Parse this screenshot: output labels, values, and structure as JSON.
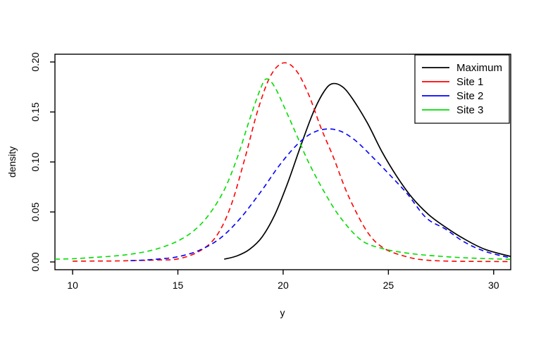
{
  "chart_data": {
    "type": "line",
    "title": "",
    "xlabel": "y",
    "ylabel": "density",
    "xlim": [
      9.16,
      30.81
    ],
    "ylim": [
      -0.00775,
      0.20775
    ],
    "grid": false,
    "x_ticks": {
      "values": [
        10,
        15,
        20,
        25,
        30
      ],
      "labels": [
        "10",
        "15",
        "20",
        "25",
        "30"
      ]
    },
    "y_ticks": {
      "values": [
        0.0,
        0.05,
        0.1,
        0.15,
        0.2
      ],
      "labels": [
        "0.00",
        "0.05",
        "0.10",
        "0.15",
        "0.20"
      ]
    },
    "legend": {
      "position": "topright",
      "labels": [
        "Maximum",
        "Site 1",
        "Site 2",
        "Site 3"
      ]
    },
    "series": [
      {
        "name": "Maximum",
        "color": "#000000",
        "style": "solid",
        "points": [
          [
            17.2,
            0.0028
          ],
          [
            17.8,
            0.006
          ],
          [
            18.4,
            0.0125
          ],
          [
            19.0,
            0.025
          ],
          [
            19.6,
            0.047
          ],
          [
            20.2,
            0.078
          ],
          [
            20.8,
            0.114
          ],
          [
            21.4,
            0.148
          ],
          [
            21.9,
            0.169
          ],
          [
            22.3,
            0.178
          ],
          [
            22.8,
            0.1755
          ],
          [
            23.3,
            0.163
          ],
          [
            24.0,
            0.139
          ],
          [
            24.7,
            0.11
          ],
          [
            25.4,
            0.0855
          ],
          [
            26.1,
            0.065
          ],
          [
            26.9,
            0.0475
          ],
          [
            27.7,
            0.035
          ],
          [
            28.6,
            0.023
          ],
          [
            29.6,
            0.0125
          ],
          [
            30.81,
            0.0055
          ]
        ]
      },
      {
        "name": "Site 1",
        "color": "#ff0000",
        "style": "dashed",
        "points": [
          [
            10.0,
            0.0008
          ],
          [
            11.0,
            0.0009
          ],
          [
            12.0,
            0.001
          ],
          [
            13.0,
            0.0014
          ],
          [
            14.0,
            0.002
          ],
          [
            15.0,
            0.003
          ],
          [
            16.0,
            0.0105
          ],
          [
            16.8,
            0.025
          ],
          [
            17.5,
            0.055
          ],
          [
            18.2,
            0.105
          ],
          [
            18.8,
            0.152
          ],
          [
            19.4,
            0.186
          ],
          [
            20.0,
            0.199
          ],
          [
            20.6,
            0.192
          ],
          [
            21.2,
            0.168
          ],
          [
            21.8,
            0.134
          ],
          [
            22.4,
            0.104
          ],
          [
            23.1,
            0.066
          ],
          [
            24.0,
            0.03
          ],
          [
            24.8,
            0.0135
          ],
          [
            25.9,
            0.005
          ],
          [
            26.8,
            0.0018
          ],
          [
            28.0,
            0.0008
          ],
          [
            29.5,
            0.0005
          ],
          [
            30.81,
            0.0004
          ]
        ]
      },
      {
        "name": "Site 2",
        "color": "#0000ff",
        "style": "dashed",
        "points": [
          [
            12.75,
            0.0013
          ],
          [
            13.5,
            0.002
          ],
          [
            14.2,
            0.0032
          ],
          [
            15.0,
            0.0052
          ],
          [
            16.0,
            0.0115
          ],
          [
            17.0,
            0.0235
          ],
          [
            18.0,
            0.0445
          ],
          [
            19.0,
            0.072
          ],
          [
            19.8,
            0.096
          ],
          [
            20.6,
            0.116
          ],
          [
            21.3,
            0.128
          ],
          [
            22.0,
            0.1328
          ],
          [
            22.7,
            0.131
          ],
          [
            23.4,
            0.122
          ],
          [
            24.1,
            0.108
          ],
          [
            25.0,
            0.0885
          ],
          [
            25.9,
            0.068
          ],
          [
            26.8,
            0.044
          ],
          [
            27.7,
            0.033
          ],
          [
            28.6,
            0.02
          ],
          [
            29.6,
            0.0105
          ],
          [
            30.81,
            0.004
          ]
        ]
      },
      {
        "name": "Site 3",
        "color": "#00dd00",
        "style": "dashed",
        "points": [
          [
            9.16,
            0.0028
          ],
          [
            10.0,
            0.0032
          ],
          [
            11.0,
            0.0045
          ],
          [
            12.0,
            0.006
          ],
          [
            13.0,
            0.0085
          ],
          [
            14.0,
            0.013
          ],
          [
            15.0,
            0.021
          ],
          [
            15.8,
            0.032
          ],
          [
            16.5,
            0.048
          ],
          [
            17.2,
            0.072
          ],
          [
            17.8,
            0.103
          ],
          [
            18.4,
            0.142
          ],
          [
            18.9,
            0.172
          ],
          [
            19.2,
            0.183
          ],
          [
            19.6,
            0.175
          ],
          [
            20.2,
            0.148
          ],
          [
            20.7,
            0.124
          ],
          [
            21.2,
            0.1
          ],
          [
            21.9,
            0.072
          ],
          [
            22.7,
            0.045
          ],
          [
            23.7,
            0.022
          ],
          [
            24.7,
            0.0135
          ],
          [
            26.0,
            0.0085
          ],
          [
            27.5,
            0.0056
          ],
          [
            29.0,
            0.0038
          ],
          [
            30.81,
            0.0026
          ]
        ]
      }
    ]
  }
}
